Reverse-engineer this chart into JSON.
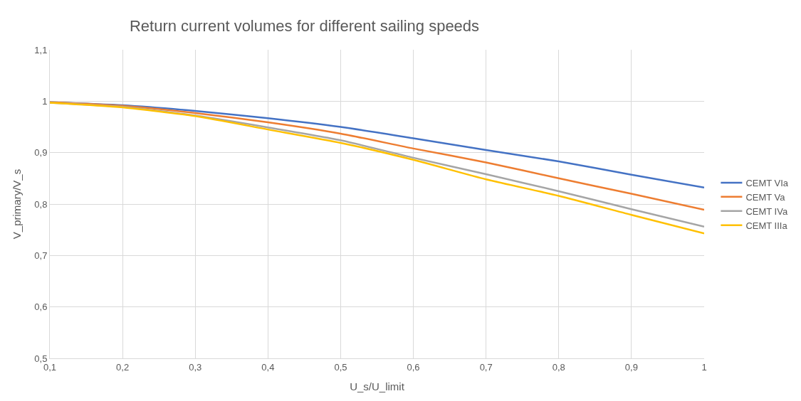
{
  "chart_data": {
    "type": "line",
    "title": "Return current volumes for different sailing speeds",
    "xlabel": "U_s/U_limit",
    "ylabel": "V_primary/V_s",
    "x": [
      0.1,
      0.2,
      0.3,
      0.4,
      0.5,
      0.6,
      0.7,
      0.8,
      0.9,
      1.0
    ],
    "series": [
      {
        "name": "CEMT VIa",
        "color": "#4472c4",
        "values": [
          0.998,
          0.992,
          0.981,
          0.967,
          0.95,
          0.928,
          0.905,
          0.883,
          0.857,
          0.832
        ]
      },
      {
        "name": "CEMT Va",
        "color": "#ed7d31",
        "values": [
          0.998,
          0.991,
          0.977,
          0.959,
          0.937,
          0.908,
          0.881,
          0.85,
          0.82,
          0.789
        ]
      },
      {
        "name": "CEMT IVa",
        "color": "#a5a5a5",
        "values": [
          0.997,
          0.989,
          0.972,
          0.949,
          0.924,
          0.89,
          0.858,
          0.825,
          0.79,
          0.756
        ]
      },
      {
        "name": "CEMT IIIa",
        "color": "#ffc000",
        "values": [
          0.997,
          0.988,
          0.971,
          0.945,
          0.919,
          0.886,
          0.848,
          0.816,
          0.779,
          0.743
        ]
      }
    ],
    "xlim": [
      0.1,
      1.0
    ],
    "xticks": [
      {
        "value": 0.1,
        "label": "0,1"
      },
      {
        "value": 0.2,
        "label": "0,2"
      },
      {
        "value": 0.3,
        "label": "0,3"
      },
      {
        "value": 0.4,
        "label": "0,4"
      },
      {
        "value": 0.5,
        "label": "0,5"
      },
      {
        "value": 0.6,
        "label": "0,6"
      },
      {
        "value": 0.7,
        "label": "0,7"
      },
      {
        "value": 0.8,
        "label": "0,8"
      },
      {
        "value": 0.9,
        "label": "0,9"
      },
      1
    ],
    "ylim": [
      0.5,
      1.1
    ],
    "yticks": [
      {
        "value": 0.5,
        "label": "0,5"
      },
      {
        "value": 0.6,
        "label": "0,6"
      },
      {
        "value": 0.7,
        "label": "0,7"
      },
      {
        "value": 0.8,
        "label": "0,8"
      },
      {
        "value": 0.9,
        "label": "0,9"
      },
      1,
      {
        "value": 1.1,
        "label": "1,1"
      }
    ],
    "grid": true,
    "legend": "right",
    "marker": "none",
    "line_style": "solid"
  }
}
